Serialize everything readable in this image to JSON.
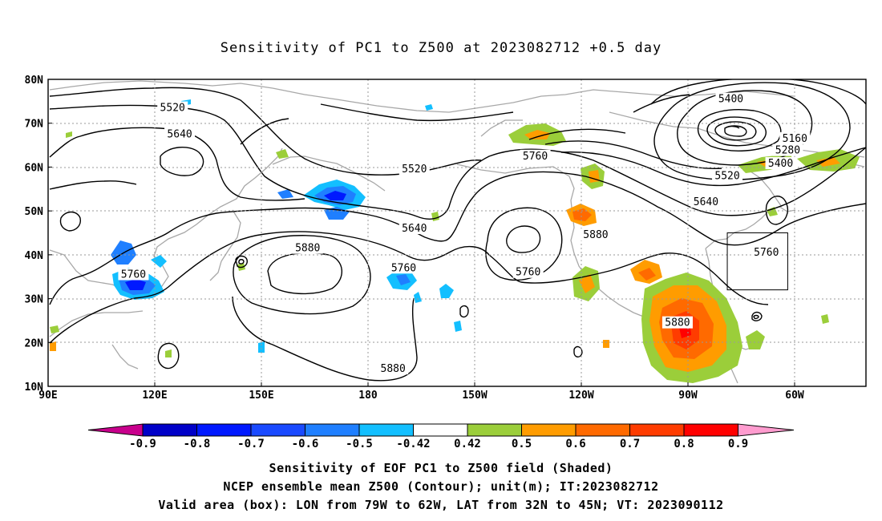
{
  "title": "Sensitivity of PC1 to Z500 at 2023082712 +0.5 day",
  "lon_labels": [
    "90E",
    "120E",
    "150E",
    "180",
    "150W",
    "120W",
    "90W",
    "60W"
  ],
  "lat_labels": [
    "80N",
    "70N",
    "60N",
    "50N",
    "40N",
    "30N",
    "20N",
    "10N"
  ],
  "lon_range": [
    90,
    320
  ],
  "lat_range": [
    10,
    80
  ],
  "contour_labels": [
    {
      "text": "5520",
      "lon": 125,
      "lat": 73.5
    },
    {
      "text": "5640",
      "lon": 127,
      "lat": 67.5
    },
    {
      "text": "5760",
      "lon": 114,
      "lat": 35.5
    },
    {
      "text": "5880",
      "lon": 163,
      "lat": 41.5
    },
    {
      "text": "5760",
      "lon": 190,
      "lat": 37
    },
    {
      "text": "5520",
      "lon": 193,
      "lat": 59.5
    },
    {
      "text": "5640",
      "lon": 193,
      "lat": 46
    },
    {
      "text": "5760",
      "lon": 227,
      "lat": 62.5
    },
    {
      "text": "5760",
      "lon": 225,
      "lat": 36
    },
    {
      "text": "5880",
      "lon": 244,
      "lat": 44.5
    },
    {
      "text": "5880",
      "lon": 267,
      "lat": 24.5
    },
    {
      "text": "5880",
      "lon": 187,
      "lat": 14
    },
    {
      "text": "5400",
      "lon": 282,
      "lat": 75.5
    },
    {
      "text": "5160",
      "lon": 300,
      "lat": 66.5
    },
    {
      "text": "5280",
      "lon": 298,
      "lat": 63.8
    },
    {
      "text": "5400",
      "lon": 296,
      "lat": 60.8
    },
    {
      "text": "5520",
      "lon": 281,
      "lat": 58
    },
    {
      "text": "5640",
      "lon": 275,
      "lat": 52
    },
    {
      "text": "5760",
      "lon": 292,
      "lat": 40.5
    }
  ],
  "colorbar": {
    "labels": [
      "-0.9",
      "-0.8",
      "-0.7",
      "-0.6",
      "-0.5",
      "-0.42",
      "0.42",
      "0.5",
      "0.6",
      "0.7",
      "0.8",
      "0.9"
    ],
    "colors": [
      "#0000c8",
      "#0019ff",
      "#1a4aff",
      "#1f7fff",
      "#13bfff",
      "#ffffff",
      "#9bce3a",
      "#ff9c00",
      "#ff6a00",
      "#ff3c00",
      "#ff0000"
    ],
    "low_end_color": "#c8008c",
    "high_end_color": "#ff9ccf"
  },
  "valid_box": {
    "lon_from": 281,
    "lon_to": 298,
    "lat_from": 32,
    "lat_to": 45
  },
  "captions": [
    "Sensitivity of EOF PC1 to Z500 field (Shaded)",
    "NCEP ensemble mean Z500 (Contour); unit(m); IT:2023082712",
    "Valid area (box): LON from 79W to 62W, LAT from 32N to 45N; VT: 2023090112"
  ]
}
